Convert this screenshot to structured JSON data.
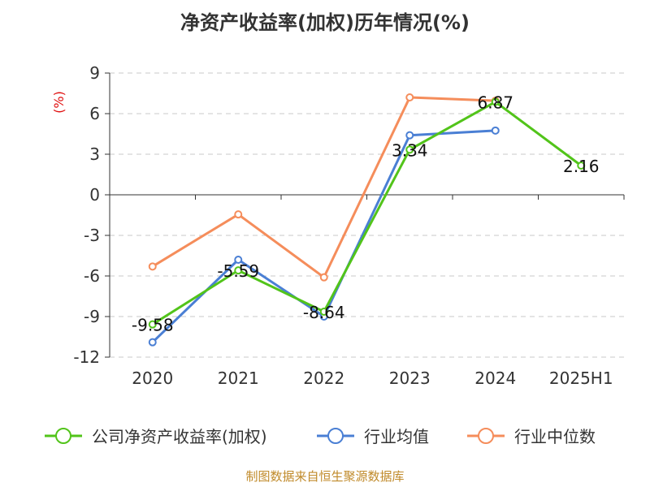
{
  "chart_data": {
    "type": "line",
    "title": "净资产收益率(加权)历年情况(%)",
    "ylabel": "(%)",
    "categories": [
      "2020",
      "2021",
      "2022",
      "2023",
      "2024",
      "2025H1"
    ],
    "yticks": [
      "9",
      "6",
      "3",
      "0",
      "-3",
      "-6",
      "-9",
      "-12"
    ],
    "ylim": [
      -12,
      9
    ],
    "grid": true,
    "legend_position": "bottom",
    "series": [
      {
        "name": "公司净资产收益率(加权)",
        "color": "#52c41a",
        "values": [
          -9.58,
          -5.59,
          -8.64,
          3.34,
          6.87,
          2.16
        ],
        "labels": [
          "-9.58",
          "-5.59",
          "-8.64",
          "3.34",
          "6.87",
          "2.16"
        ]
      },
      {
        "name": "行业均值",
        "color": "#4a7fd4",
        "values": [
          -10.9,
          -4.8,
          -9.0,
          4.4,
          4.75,
          null
        ]
      },
      {
        "name": "行业中位数",
        "color": "#f58d5b",
        "values": [
          -5.3,
          -1.45,
          -6.1,
          7.2,
          6.95,
          null
        ]
      }
    ]
  },
  "source": "制图数据来自恒生聚源数据库"
}
